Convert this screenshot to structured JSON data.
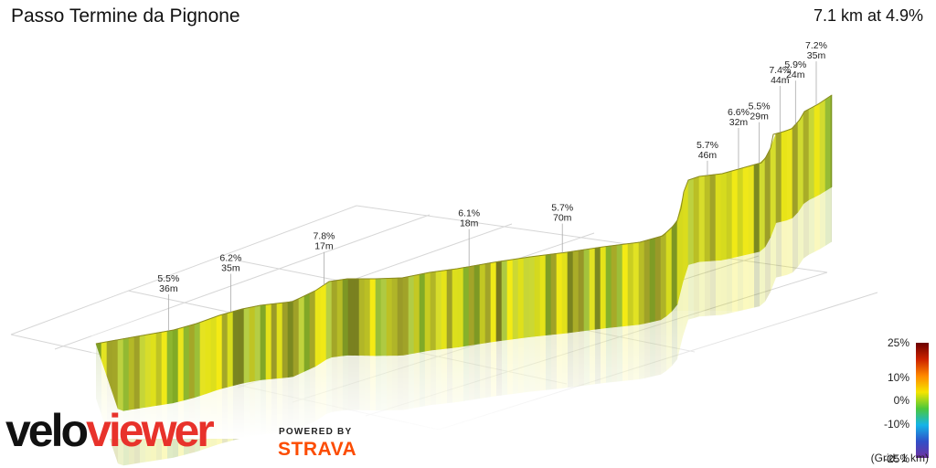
{
  "header": {
    "title": "Passo Termine da Pignone",
    "summary": "7.1 km at 4.9%"
  },
  "chart_data": {
    "type": "area",
    "title": "Passo Termine da Pignone",
    "subtitle": "7.1 km at 4.9%",
    "segments": [
      {
        "grade": "5.5%",
        "gain": "36m",
        "km": 0.7
      },
      {
        "grade": "6.2%",
        "gain": "35m",
        "km": 1.3
      },
      {
        "grade": "7.8%",
        "gain": "17m",
        "km": 2.2
      },
      {
        "grade": "6.1%",
        "gain": "18m",
        "km": 3.6
      },
      {
        "grade": "5.7%",
        "gain": "70m",
        "km": 4.5
      },
      {
        "grade": "5.7%",
        "gain": "46m",
        "km": 5.9
      },
      {
        "grade": "6.6%",
        "gain": "32m",
        "km": 6.2
      },
      {
        "grade": "5.5%",
        "gain": "29m",
        "km": 6.4
      },
      {
        "grade": "7.4%",
        "gain": "44m",
        "km": 6.6
      },
      {
        "grade": "5.9%",
        "gain": "24m",
        "km": 6.75
      },
      {
        "grade": "7.2%",
        "gain": "35m",
        "km": 6.95
      }
    ],
    "gradient_scale": {
      "labels": [
        "25%",
        "10%",
        "0%",
        "-10%",
        "-25%"
      ],
      "colors": [
        "#6b0000",
        "#cc2200",
        "#ff8800",
        "#f5e500",
        "#4cc83a",
        "#14b4e8",
        "#3050c8",
        "#7030a0"
      ]
    },
    "grid_note": "(Grid: 1 km)"
  },
  "branding": {
    "logo_part1": "velo",
    "logo_part2": "viewer",
    "powered_by": "POWERED BY",
    "strava": "STRAVA"
  }
}
